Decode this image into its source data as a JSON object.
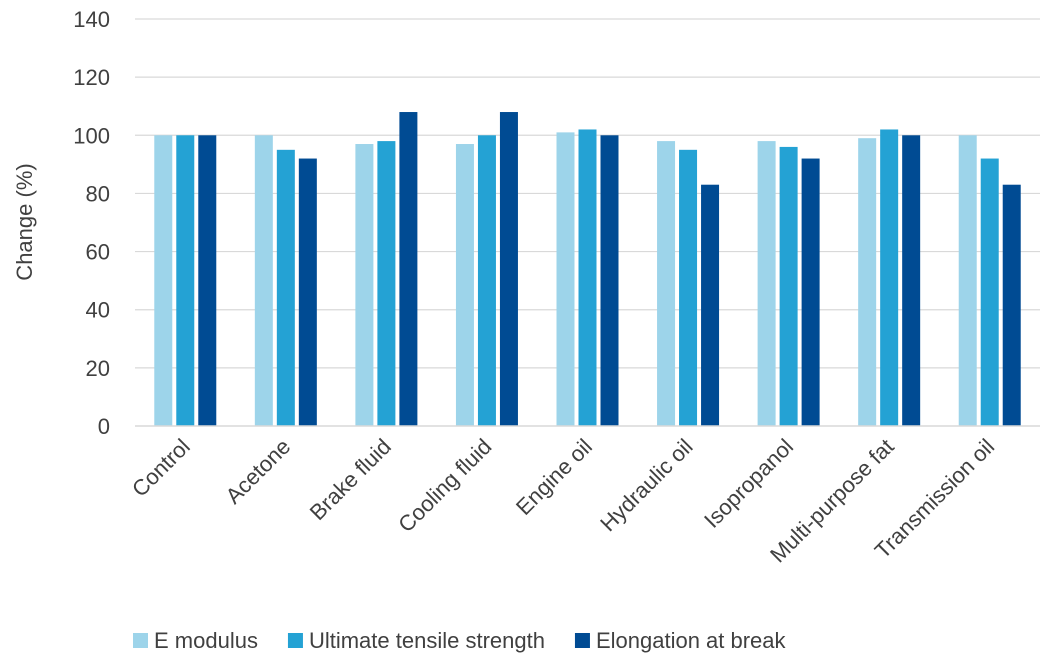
{
  "chart_data": {
    "type": "bar",
    "title": "",
    "xlabel": "",
    "ylabel": "Change (%)",
    "ylim": [
      0,
      140
    ],
    "yticks": [
      0,
      20,
      40,
      60,
      80,
      100,
      120,
      140
    ],
    "grid": true,
    "legend_position": "bottom",
    "categories": [
      "Control",
      "Acetone",
      "Brake fluid",
      "Cooling fluid",
      "Engine oil",
      "Hydraulic oil",
      "Isopropanol",
      "Multi-purpose fat",
      "Transmission oil"
    ],
    "series": [
      {
        "name": "E modulus",
        "color": "#9dd4ea",
        "values": [
          100,
          100,
          97,
          97,
          101,
          98,
          98,
          99,
          100
        ]
      },
      {
        "name": "Ultimate tensile strength",
        "color": "#24a2d4",
        "values": [
          100,
          95,
          98,
          100,
          102,
          95,
          96,
          102,
          92
        ]
      },
      {
        "name": "Elongation at break",
        "color": "#004b93",
        "values": [
          100,
          92,
          108,
          108,
          100,
          83,
          92,
          100,
          83
        ]
      }
    ]
  }
}
